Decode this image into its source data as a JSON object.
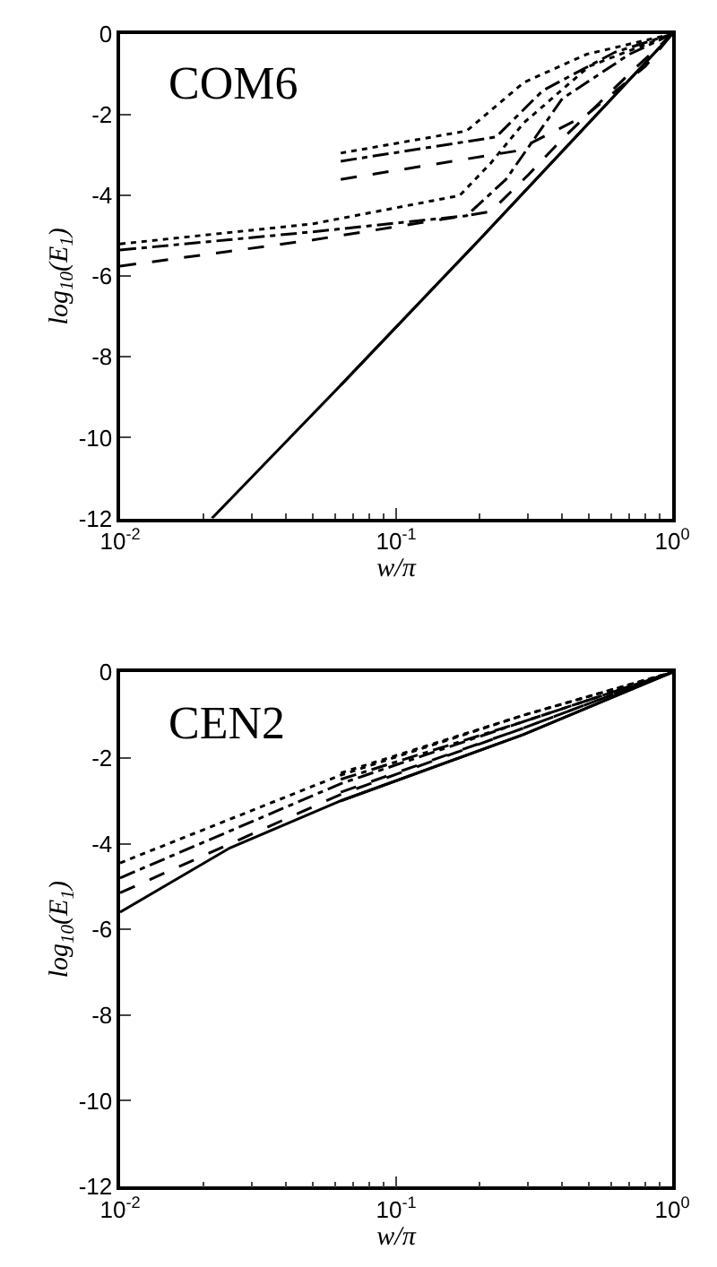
{
  "chart_data": [
    {
      "type": "line",
      "xlabel": "w/π",
      "ylabel": "log$_{10}$(E$_{1}$)",
      "annotations": [
        "COM6"
      ],
      "log": "x",
      "grid": false,
      "xlim": [
        0.01,
        1
      ],
      "ylim": [
        -12,
        0
      ],
      "xticks": [
        {
          "value": 0.01,
          "label": "10$^{-2}$"
        },
        {
          "value": 0.1,
          "label": "10$^{-1}$"
        },
        {
          "value": 1,
          "label": "10$^{0}$"
        }
      ],
      "yticks": [
        0,
        -2,
        -4,
        -6,
        -8,
        -10,
        -12
      ],
      "series": [
        {
          "color": "#000000",
          "line_style": "solid",
          "x": [
            0.0215,
            0.063,
            0.2,
            1
          ],
          "values": [
            -12,
            -8.7,
            -5.1,
            0
          ]
        },
        {
          "color": "#000000",
          "line_style": "dotted",
          "x": [
            0.01,
            0.05,
            0.17,
            0.22,
            0.29,
            0.5,
            1
          ],
          "values": [
            -5.2,
            -4.7,
            -4.0,
            -3.2,
            -2.2,
            -0.8,
            0
          ]
        },
        {
          "color": "#000000",
          "line_style": "dashdot",
          "x": [
            0.01,
            0.05,
            0.18,
            0.25,
            0.4,
            0.7,
            1
          ],
          "values": [
            -5.35,
            -4.9,
            -4.5,
            -3.6,
            -1.6,
            -0.5,
            0
          ]
        },
        {
          "color": "#000000",
          "line_style": "dashed",
          "x": [
            0.01,
            0.05,
            0.22,
            0.3,
            0.4,
            0.72,
            1
          ],
          "values": [
            -5.75,
            -5.1,
            -4.4,
            -3.5,
            -2.6,
            -0.9,
            0
          ]
        },
        {
          "color": "#000000",
          "line_style": "solid",
          "x": [
            0.063,
            0.2,
            1
          ],
          "values": [
            -8.7,
            -5.1,
            0
          ]
        },
        {
          "color": "#000000",
          "line_style": "dotted",
          "x": [
            0.063,
            0.18,
            0.29,
            0.49,
            1
          ],
          "values": [
            -2.95,
            -2.4,
            -1.2,
            -0.5,
            0
          ]
        },
        {
          "color": "#000000",
          "line_style": "dashdot",
          "x": [
            0.063,
            0.23,
            0.34,
            0.62,
            1
          ],
          "values": [
            -3.15,
            -2.55,
            -1.4,
            -0.45,
            0
          ]
        },
        {
          "color": "#000000",
          "line_style": "dashed",
          "x": [
            0.063,
            0.27,
            0.49,
            0.8,
            1
          ],
          "values": [
            -3.6,
            -2.9,
            -2.0,
            -0.8,
            0
          ]
        }
      ]
    },
    {
      "type": "line",
      "xlabel": "w/π",
      "ylabel": "log$_{10}$(E$_{1}$)",
      "annotations": [
        "CEN2"
      ],
      "log": "x",
      "grid": false,
      "xlim": [
        0.01,
        1
      ],
      "ylim": [
        -12,
        0
      ],
      "xticks": [
        {
          "value": 0.01,
          "label": "10$^{-2}$"
        },
        {
          "value": 0.1,
          "label": "10$^{-1}$"
        },
        {
          "value": 1,
          "label": "10$^{0}$"
        }
      ],
      "yticks": [
        0,
        -2,
        -4,
        -6,
        -8,
        -10,
        -12
      ],
      "series": [
        {
          "color": "#000000",
          "line_style": "solid",
          "x": [
            0.01,
            0.025,
            0.063,
            0.29,
            1
          ],
          "values": [
            -5.6,
            -4.1,
            -3.0,
            -1.45,
            0
          ]
        },
        {
          "color": "#000000",
          "line_style": "dotted",
          "x": [
            0.01,
            0.063,
            0.29,
            1
          ],
          "values": [
            -4.45,
            -2.4,
            -1.0,
            0
          ]
        },
        {
          "color": "#000000",
          "line_style": "dashdot",
          "x": [
            0.01,
            0.063,
            0.29,
            1
          ],
          "values": [
            -4.8,
            -2.6,
            -1.15,
            0
          ]
        },
        {
          "color": "#000000",
          "line_style": "dashed",
          "x": [
            0.01,
            0.063,
            0.29,
            1
          ],
          "values": [
            -5.15,
            -2.85,
            -1.3,
            0
          ]
        },
        {
          "color": "#000000",
          "line_style": "solid",
          "x": [
            0.063,
            0.29,
            1
          ],
          "values": [
            -3.0,
            -1.45,
            0
          ]
        },
        {
          "color": "#000000",
          "line_style": "dotted",
          "x": [
            0.063,
            0.29,
            1
          ],
          "values": [
            -2.35,
            -1.0,
            0
          ]
        },
        {
          "color": "#000000",
          "line_style": "dashdot",
          "x": [
            0.063,
            0.29,
            1
          ],
          "values": [
            -2.5,
            -1.15,
            0
          ]
        },
        {
          "color": "#000000",
          "line_style": "dashed",
          "x": [
            0.063,
            0.29,
            1
          ],
          "values": [
            -2.8,
            -1.3,
            0
          ]
        }
      ]
    }
  ]
}
